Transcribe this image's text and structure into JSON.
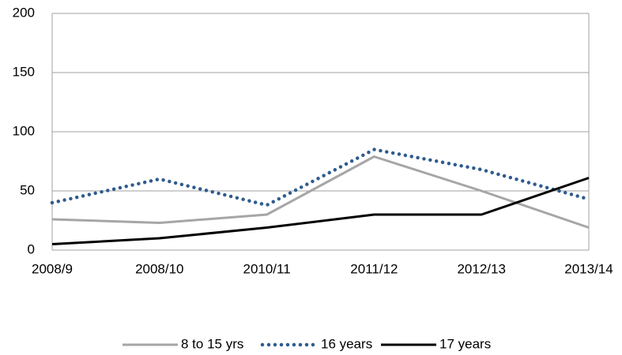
{
  "chart_data": {
    "type": "line",
    "categories": [
      "2008/9",
      "2008/10",
      "2010/11",
      "2011/12",
      "2012/13",
      "2013/14"
    ],
    "series": [
      {
        "name": "8 to 15 yrs",
        "color": "#a6a6a6",
        "style": "solid",
        "values": [
          26,
          23,
          30,
          79,
          50,
          19
        ]
      },
      {
        "name": "16 years",
        "color": "#2e5c8e",
        "style": "dotted",
        "values": [
          40,
          60,
          38,
          85,
          68,
          43
        ]
      },
      {
        "name": "17 years",
        "color": "#000000",
        "style": "solid",
        "values": [
          5,
          10,
          19,
          30,
          30,
          61
        ]
      }
    ],
    "ylim": [
      0,
      200
    ],
    "yticks": [
      0,
      50,
      100,
      150,
      200
    ],
    "grid": true,
    "legend": "bottom"
  }
}
